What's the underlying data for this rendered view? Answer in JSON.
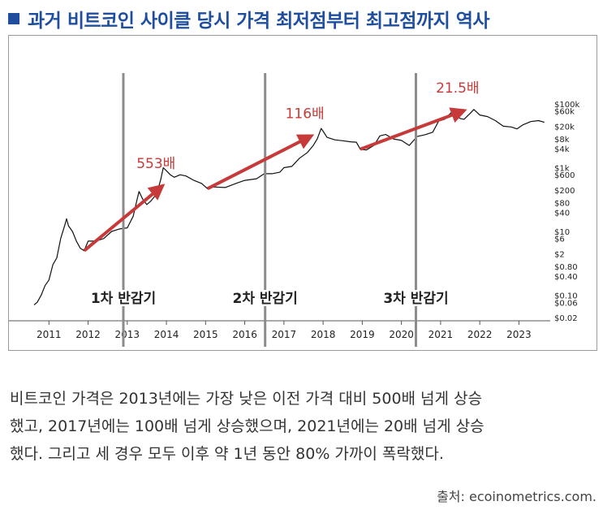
{
  "header": {
    "title": "과거 비트코인 사이클 당시 가격 최저점부터 최고점까지 역사",
    "bullet_color": "#1f4e9e"
  },
  "chart_data": {
    "type": "line",
    "title": "",
    "xlabel": "",
    "ylabel": "",
    "y_scale": "log",
    "xlim": [
      2010.6,
      2023.8
    ],
    "ylim": [
      0.02,
      100000
    ],
    "x_ticks": [
      2011,
      2012,
      2013,
      2014,
      2015,
      2016,
      2017,
      2018,
      2019,
      2020,
      2021,
      2022,
      2023
    ],
    "x_tick_labels": [
      "2011",
      "2012",
      "2013",
      "2014",
      "2015",
      "2016",
      "2017",
      "2018",
      "2019",
      "2020",
      "2021",
      "2022",
      "2023"
    ],
    "y_ticks": [
      100000,
      60000,
      20000,
      8000,
      4000,
      1000,
      600,
      200,
      80,
      40,
      10,
      6,
      2,
      0.8,
      0.4,
      0.1,
      0.06,
      0.02
    ],
    "y_tick_labels": [
      "$100k",
      "$60k",
      "$20k",
      "$8k",
      "$4k",
      "$1k",
      "$600",
      "$200",
      "$80",
      "$40",
      "$10",
      "$6",
      "$2",
      "$0.80",
      "$0.40",
      "$0.10",
      "$0.06",
      "$0.02"
    ],
    "series": [
      {
        "name": "BTC price",
        "color": "#111111",
        "x": [
          2010.62,
          2010.7,
          2010.8,
          2010.9,
          2011.0,
          2011.1,
          2011.2,
          2011.3,
          2011.4,
          2011.45,
          2011.5,
          2011.6,
          2011.7,
          2011.8,
          2011.9,
          2012.0,
          2012.2,
          2012.4,
          2012.6,
          2012.8,
          2013.0,
          2013.15,
          2013.25,
          2013.3,
          2013.4,
          2013.5,
          2013.6,
          2013.75,
          2013.85,
          2013.92,
          2014.0,
          2014.1,
          2014.2,
          2014.35,
          2014.5,
          2014.7,
          2014.9,
          2015.05,
          2015.2,
          2015.5,
          2015.8,
          2016.0,
          2016.3,
          2016.5,
          2016.7,
          2016.9,
          2017.0,
          2017.2,
          2017.4,
          2017.6,
          2017.75,
          2017.85,
          2017.95,
          2018.0,
          2018.1,
          2018.3,
          2018.5,
          2018.7,
          2018.85,
          2018.95,
          2019.1,
          2019.3,
          2019.45,
          2019.6,
          2019.8,
          2020.0,
          2020.2,
          2020.4,
          2020.6,
          2020.8,
          2020.95,
          2021.1,
          2021.3,
          2021.5,
          2021.6,
          2021.75,
          2021.85,
          2022.0,
          2022.2,
          2022.4,
          2022.6,
          2022.8,
          2022.95,
          2023.1,
          2023.3,
          2023.5,
          2023.65
        ],
        "values": [
          0.05,
          0.06,
          0.1,
          0.2,
          0.3,
          0.9,
          1.5,
          6,
          15,
          25,
          15,
          10,
          5,
          3,
          2.5,
          5,
          5,
          6,
          10,
          12,
          13,
          30,
          100,
          180,
          100,
          70,
          90,
          150,
          400,
          1000,
          800,
          600,
          500,
          600,
          550,
          400,
          320,
          220,
          250,
          240,
          330,
          400,
          450,
          650,
          650,
          730,
          1000,
          1100,
          2000,
          3000,
          5000,
          8000,
          17000,
          14000,
          9000,
          7500,
          7000,
          6500,
          6300,
          3800,
          3600,
          5000,
          10000,
          11000,
          8000,
          7200,
          5000,
          9500,
          10800,
          13000,
          29000,
          33000,
          58000,
          35000,
          33000,
          50000,
          67000,
          45000,
          40000,
          30000,
          20000,
          19000,
          16500,
          22000,
          28000,
          30000,
          26500
        ]
      }
    ],
    "halvings": [
      {
        "x": 2012.9,
        "label": "1차 반감기"
      },
      {
        "x": 2016.52,
        "label": "2차 반감기"
      },
      {
        "x": 2020.37,
        "label": "3차 반감기"
      }
    ],
    "arrows": [
      {
        "from": [
          2011.9,
          2.5
        ],
        "to": [
          2013.9,
          270
        ],
        "label": "553배"
      },
      {
        "from": [
          2015.05,
          220
        ],
        "to": [
          2017.7,
          10000
        ],
        "label": "116배"
      },
      {
        "from": [
          2018.95,
          3800
        ],
        "to": [
          2021.6,
          62000
        ],
        "label": "21.5배"
      }
    ],
    "arrow_color": "#c73a3a"
  },
  "caption": {
    "lines": [
      "비트코인 가격은 2013년에는 가장 낮은 이전 가격 대비 500배 넘게 상승",
      "했고, 2017년에는 100배 넘게 상승했으며, 2021년에는 20배 넘게 상승",
      "했다. 그리고 세 경우 모두 이후 약 1년 동안 80% 가까이 폭락했다."
    ]
  },
  "source": "출처: ecoinometrics.com."
}
